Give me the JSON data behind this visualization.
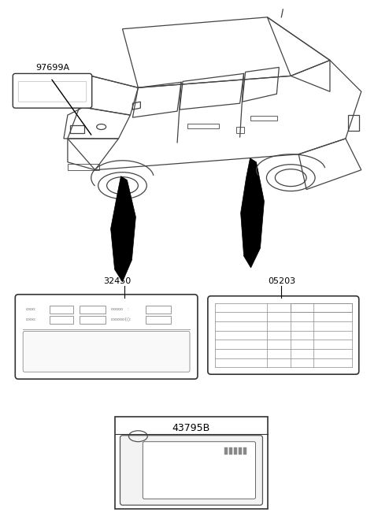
{
  "bg_color": "#ffffff",
  "line_color": "#333333",
  "label_97699A": "97699A",
  "label_32450": "32450",
  "label_05203": "05203",
  "label_43795B": "43795B",
  "figsize": [
    4.8,
    6.69
  ],
  "dpi": 100
}
